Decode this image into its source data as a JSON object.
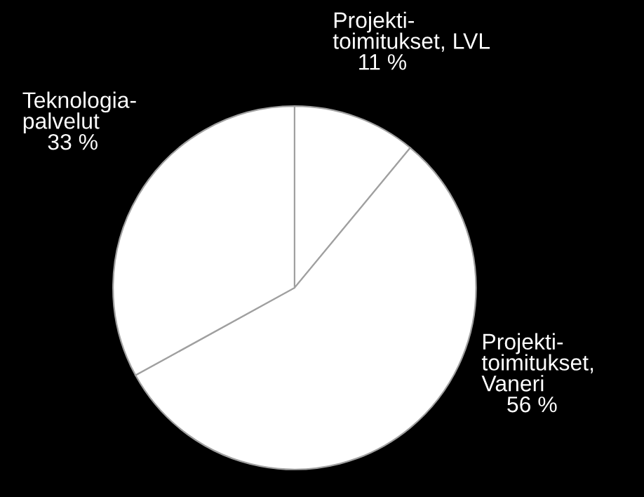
{
  "chart_data": {
    "type": "pie",
    "categories": [
      "Projekti-\ntoimitukset, LVL",
      "Projekti-\ntoimitukset,\nVaneri",
      "Teknologia-\npalvelut"
    ],
    "values": [
      11,
      56,
      33
    ],
    "value_labels": [
      "11 %",
      "56 %",
      "33 %"
    ],
    "colors": [
      "#ffffff",
      "#ffffff",
      "#ffffff"
    ]
  }
}
